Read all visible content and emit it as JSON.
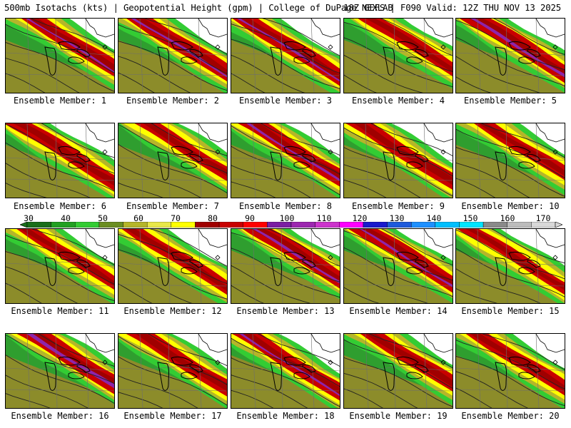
{
  "header": {
    "left": "500mb Isotachs (kts) | Geopotential Height (gpm) | College of DuPage NEXLAB",
    "right": "18Z GEFS | F090 Valid: 12Z THU NOV 13 2025"
  },
  "colorbar": {
    "labels": [
      "30",
      "40",
      "50",
      "60",
      "70",
      "80",
      "90",
      "100",
      "110",
      "120",
      "130",
      "140",
      "150",
      "160",
      "170"
    ],
    "colors": [
      "#1a6e1a",
      "#22a022",
      "#33cc33",
      "#6b8e23",
      "#b5b52a",
      "#e8e84a",
      "#ffff00",
      "#a00000",
      "#c80000",
      "#ff0000",
      "#7b1fa2",
      "#9c27b0",
      "#cc33cc",
      "#ff00ff",
      "#1a1acc",
      "#1e5adc",
      "#1e90ff",
      "#00bfff",
      "#00e5ff",
      "#8a8a8a",
      "#bcbcbc",
      "#d8d8d8"
    ]
  },
  "members": [
    {
      "label": "Ensemble Member: 1",
      "speed": 0.75
    },
    {
      "label": "Ensemble Member: 2",
      "speed": 0.8
    },
    {
      "label": "Ensemble Member: 3",
      "speed": 0.78
    },
    {
      "label": "Ensemble Member: 4",
      "speed": 0.62
    },
    {
      "label": "Ensemble Member: 5",
      "speed": 0.85
    },
    {
      "label": "Ensemble Member: 6",
      "speed": 0.7
    },
    {
      "label": "Ensemble Member: 7",
      "speed": 0.6
    },
    {
      "label": "Ensemble Member: 8",
      "speed": 0.78
    },
    {
      "label": "Ensemble Member: 9",
      "speed": 0.7
    },
    {
      "label": "Ensemble Member: 10",
      "speed": 0.58
    },
    {
      "label": "Ensemble Member: 11",
      "speed": 0.55
    },
    {
      "label": "Ensemble Member: 12",
      "speed": 0.6
    },
    {
      "label": "Ensemble Member: 13",
      "speed": 0.82
    },
    {
      "label": "Ensemble Member: 14",
      "speed": 0.78
    },
    {
      "label": "Ensemble Member: 15",
      "speed": 0.5
    },
    {
      "label": "Ensemble Member: 16",
      "speed": 0.9
    },
    {
      "label": "Ensemble Member: 17",
      "speed": 0.72
    },
    {
      "label": "Ensemble Member: 18",
      "speed": 0.75
    },
    {
      "label": "Ensemble Member: 19",
      "speed": 0.7
    },
    {
      "label": "Ensemble Member: 20",
      "speed": 0.65
    }
  ]
}
